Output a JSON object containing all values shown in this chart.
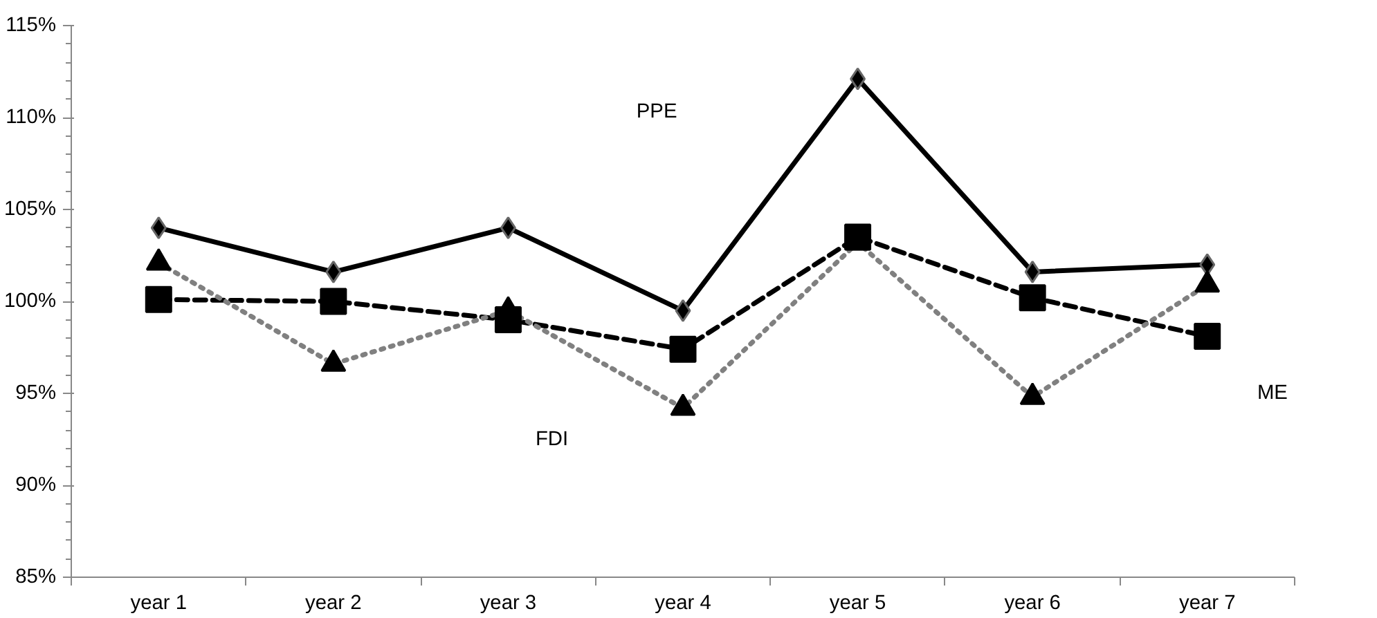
{
  "chart_data": {
    "type": "line",
    "categories": [
      "year 1",
      "year 2",
      "year 3",
      "year 4",
      "year 5",
      "year 6",
      "year 7"
    ],
    "ylim": [
      85,
      115
    ],
    "yticks": [
      {
        "value": 85,
        "label": "85%"
      },
      {
        "value": 90,
        "label": "90%"
      },
      {
        "value": 95,
        "label": "95%"
      },
      {
        "value": 100,
        "label": "100%"
      },
      {
        "value": 105,
        "label": "105%"
      },
      {
        "value": 110,
        "label": "110%"
      },
      {
        "value": 115,
        "label": "115%"
      }
    ],
    "grid": false,
    "annotations": [
      "PPE",
      "ME",
      "FDI"
    ],
    "series": [
      {
        "color": "#000000",
        "marker": "diamond",
        "line_style": "solid",
        "values": [
          104.0,
          101.6,
          104.0,
          99.5,
          112.1,
          101.6,
          102.0
        ]
      },
      {
        "color": "#000000",
        "marker": "square",
        "line_style": "dashed",
        "values": [
          100.1,
          100.0,
          99.0,
          97.4,
          103.5,
          100.2,
          98.1
        ]
      },
      {
        "color": "#808080",
        "marker": "triangle",
        "line_style": "dotted",
        "values": [
          102.1,
          96.6,
          99.5,
          94.2,
          103.2,
          94.8,
          100.9
        ]
      }
    ]
  }
}
